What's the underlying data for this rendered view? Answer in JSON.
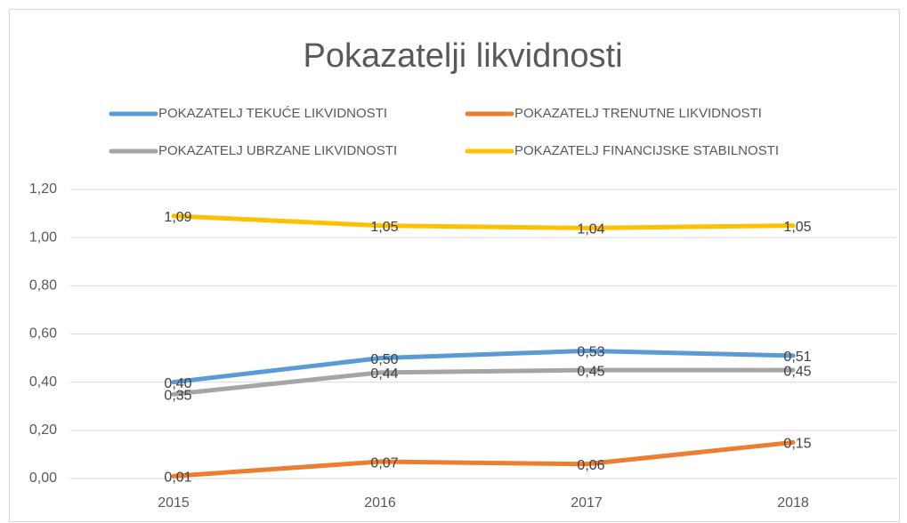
{
  "chart_data": {
    "type": "line",
    "title": "Pokazatelji likvidnosti",
    "categories": [
      "2015",
      "2016",
      "2017",
      "2018"
    ],
    "series": [
      {
        "name": "POKAZATELJ TEKUĆE LIKVIDNOSTI",
        "color": "#5b9bd5",
        "values": [
          0.4,
          0.5,
          0.53,
          0.51
        ],
        "value_labels": [
          "0,40",
          "0,50",
          "0,53",
          "0,51"
        ]
      },
      {
        "name": "POKAZATELJ TRENUTNE LIKVIDNOSTI",
        "color": "#ed7d31",
        "values": [
          0.01,
          0.07,
          0.06,
          0.15
        ],
        "value_labels": [
          "0,01",
          "0,07",
          "0,06",
          "0,15"
        ]
      },
      {
        "name": "POKAZATELJ UBRZANE LIKVIDNOSTI",
        "color": "#a5a5a5",
        "values": [
          0.35,
          0.44,
          0.45,
          0.45
        ],
        "value_labels": [
          "0,35",
          "0,44",
          "0,45",
          "0,45"
        ]
      },
      {
        "name": "POKAZATELJ FINANCIJSKE STABILNOSTI",
        "color": "#ffc000",
        "values": [
          1.09,
          1.05,
          1.04,
          1.05
        ],
        "value_labels": [
          "1,09",
          "1,05",
          "1,04",
          "1,05"
        ]
      }
    ],
    "ylim": [
      0,
      1.2
    ],
    "yticks": [
      {
        "value": 0,
        "label": "0,00"
      },
      {
        "value": 0.2,
        "label": "0,20"
      },
      {
        "value": 0.4,
        "label": "0,40"
      },
      {
        "value": 0.6,
        "label": "0,60"
      },
      {
        "value": 0.8,
        "label": "0,80"
      },
      {
        "value": 1.0,
        "label": "1,00"
      },
      {
        "value": 1.2,
        "label": "1,20"
      }
    ],
    "grid": true
  }
}
